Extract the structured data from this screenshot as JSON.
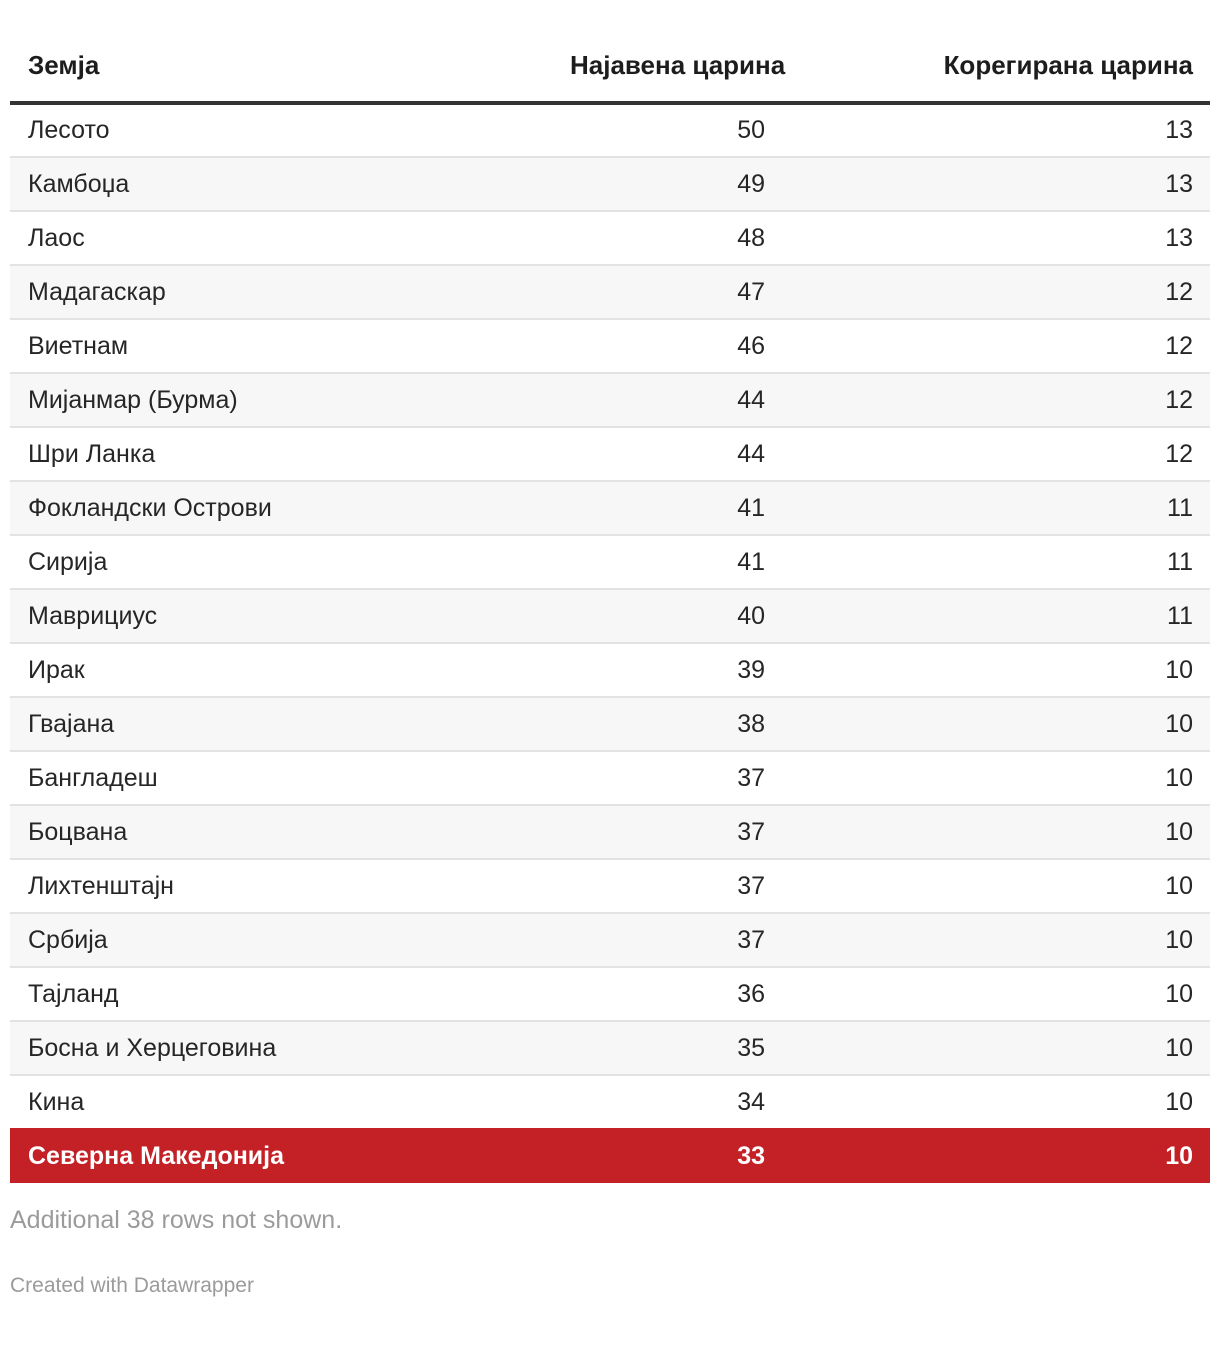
{
  "chart_data": {
    "type": "table",
    "columns": [
      "Земја",
      "Најавена царина",
      "Корегирана царина"
    ],
    "rows": [
      [
        "Лесото",
        50,
        13
      ],
      [
        "Камбоџа",
        49,
        13
      ],
      [
        "Лаос",
        48,
        13
      ],
      [
        "Мадагаскар",
        47,
        12
      ],
      [
        "Виетнам",
        46,
        12
      ],
      [
        "Мијанмар (Бурма)",
        44,
        12
      ],
      [
        "Шри Ланка",
        44,
        12
      ],
      [
        "Фокландски Острови",
        41,
        11
      ],
      [
        "Сирија",
        41,
        11
      ],
      [
        "Маврициус",
        40,
        11
      ],
      [
        "Ирак",
        39,
        10
      ],
      [
        "Гвајана",
        38,
        10
      ],
      [
        "Бангладеш",
        37,
        10
      ],
      [
        "Боцвана",
        37,
        10
      ],
      [
        "Лихтенштајн",
        37,
        10
      ],
      [
        "Србија",
        37,
        10
      ],
      [
        "Тајланд",
        36,
        10
      ],
      [
        "Босна и Херцеговина",
        35,
        10
      ],
      [
        "Кина",
        34,
        10
      ],
      [
        "Северна Македонија",
        33,
        10
      ]
    ],
    "highlight_index": 19,
    "highlighted_row": "Северна Македонија",
    "note": "Additional 38 rows not shown.",
    "legend_position": "none",
    "grid": "row-separators"
  },
  "colors": {
    "highlight_bg": "#c42127",
    "highlight_text": "#ffffff",
    "alt_row_bg": "#f7f7f7",
    "separator": "#e3e3e3",
    "header_rule": "#333333",
    "body_text": "#262626",
    "muted_text": "#9b9b9b"
  },
  "footer": {
    "note": "Additional 38 rows not shown.",
    "attribution": "Created with Datawrapper"
  }
}
